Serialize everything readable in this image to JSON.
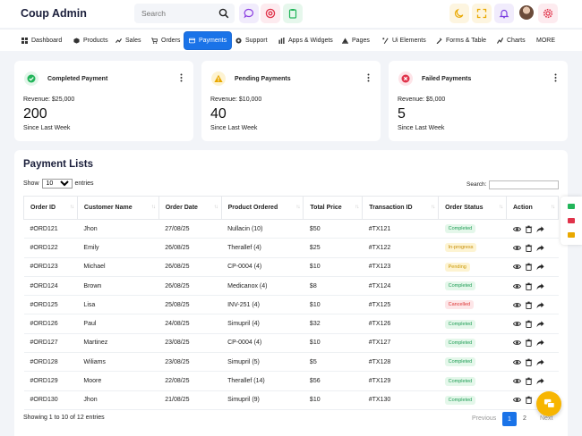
{
  "brand": "Coup Admin",
  "search": {
    "placeholder": "Search"
  },
  "nav": [
    {
      "label": "Dashboard",
      "icon": "dashboard-icon"
    },
    {
      "label": "Products",
      "icon": "box-icon"
    },
    {
      "label": "Sales",
      "icon": "sales-icon"
    },
    {
      "label": "Orders",
      "icon": "cart-icon"
    },
    {
      "label": "Payments",
      "icon": "card-icon",
      "active": true
    },
    {
      "label": "Support",
      "icon": "support-icon"
    },
    {
      "label": "Apps & Widgets",
      "icon": "apps-icon"
    },
    {
      "label": "Pages",
      "icon": "pages-icon"
    },
    {
      "label": "Ui Elements",
      "icon": "ui-icon"
    },
    {
      "label": "Forms & Table",
      "icon": "forms-icon"
    },
    {
      "label": "Charts",
      "icon": "chart-icon"
    },
    {
      "label": "MORE",
      "icon": ""
    }
  ],
  "stats": [
    {
      "title": "Completed Payment",
      "revenue": "Revenue: $25,000",
      "value": "200",
      "since": "Since Last Week",
      "color": "#22b55a",
      "bg": "#e3f6ea"
    },
    {
      "title": "Pending Payments",
      "revenue": "Revenue: $10,000",
      "value": "40",
      "since": "Since Last Week",
      "color": "#e9a800",
      "bg": "#fdf3d2"
    },
    {
      "title": "Failed Payments",
      "revenue": "Revenue: $5,000",
      "value": "5",
      "since": "Since Last Week",
      "color": "#e0334a",
      "bg": "#fde4e8"
    }
  ],
  "list": {
    "title": "Payment Lists",
    "show_prefix": "Show",
    "show_value": "10",
    "show_suffix": "entries",
    "search_label": "Search:",
    "columns": [
      "Order ID",
      "Customer Name",
      "Order Date",
      "Product Ordered",
      "Total Price",
      "Transaction ID",
      "Order Status",
      "Action"
    ],
    "rows": [
      {
        "id": "#ORD121",
        "customer": "Jhon",
        "date": "27/08/25",
        "product": "Nullacin (10)",
        "price": "$50",
        "txn": "#TX121",
        "status": "Completed",
        "status_type": "completed"
      },
      {
        "id": "#ORD122",
        "customer": "Emily",
        "date": "26/08/25",
        "product": "Therallef (4)",
        "price": "$25",
        "txn": "#TX122",
        "status": "In-progress",
        "status_type": "progress"
      },
      {
        "id": "#ORD123",
        "customer": "Michael",
        "date": "26/08/25",
        "product": "CP-0004 (4)",
        "price": "$10",
        "txn": "#TX123",
        "status": "Pending",
        "status_type": "pending"
      },
      {
        "id": "#ORD124",
        "customer": "Brown",
        "date": "26/08/25",
        "product": "Medicanox (4)",
        "price": "$8",
        "txn": "#TX124",
        "status": "Completed",
        "status_type": "completed"
      },
      {
        "id": "#ORD125",
        "customer": "Lisa",
        "date": "25/08/25",
        "product": "INV-251 (4)",
        "price": "$10",
        "txn": "#TX125",
        "status": "Cancelled",
        "status_type": "cancelled"
      },
      {
        "id": "#ORD126",
        "customer": "Paul",
        "date": "24/08/25",
        "product": "Simupril (4)",
        "price": "$32",
        "txn": "#TX126",
        "status": "Completed",
        "status_type": "completed"
      },
      {
        "id": "#ORD127",
        "customer": "Martinez",
        "date": "23/08/25",
        "product": "CP-0004 (4)",
        "price": "$10",
        "txn": "#TX127",
        "status": "Completed",
        "status_type": "completed"
      },
      {
        "id": "#ORD128",
        "customer": "Wiliams",
        "date": "23/08/25",
        "product": "Simupril (5)",
        "price": "$5",
        "txn": "#TX128",
        "status": "Completed",
        "status_type": "completed"
      },
      {
        "id": "#ORD129",
        "customer": "Moore",
        "date": "22/08/25",
        "product": "Therallef (14)",
        "price": "$56",
        "txn": "#TX129",
        "status": "Completed",
        "status_type": "completed"
      },
      {
        "id": "#ORD130",
        "customer": "Jhon",
        "date": "21/08/25",
        "product": "Simupril (9)",
        "price": "$10",
        "txn": "#TX130",
        "status": "Completed",
        "status_type": "completed"
      }
    ],
    "showing": "Showing 1 to 10 of 12 entries",
    "pager": {
      "prev": "Previous",
      "page1": "1",
      "page2": "2",
      "next": "Next"
    }
  }
}
